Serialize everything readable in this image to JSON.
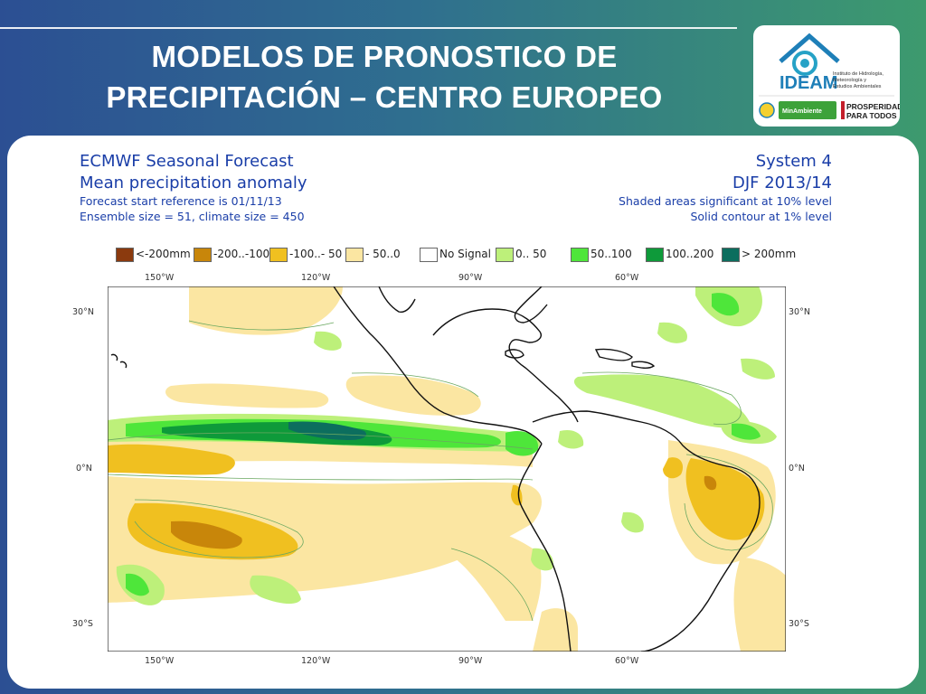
{
  "slide": {
    "title_line1": "MODELOS DE PRONOSTICO DE",
    "title_line2": "PRECIPITACIÓN – CENTRO EUROPEO"
  },
  "logo": {
    "name": "IDEAM",
    "subtitle_line1": "Instituto de Hidrología,",
    "subtitle_line2": "Meteorología y",
    "subtitle_line3": "Estudios Ambientales",
    "ministry": "MinAmbiente",
    "slogan_line1": "PROSPERIDAD",
    "slogan_line2": "PARA TODOS"
  },
  "forecast": {
    "title": "ECMWF Seasonal Forecast",
    "subtitle": "Mean precipitation anomaly",
    "start_ref": "Forecast start reference is 01/11/13",
    "ensemble": "Ensemble size = 51, climate size = 450",
    "system": "System 4",
    "period": "DJF 2013/14",
    "note1": "Shaded areas significant at 10% level",
    "note2": "Solid contour at 1% level"
  },
  "legend": [
    {
      "label": "<-200mm",
      "color": "#8b3a0e"
    },
    {
      "label": "-200..-100",
      "color": "#c8860a"
    },
    {
      "label": "-100..- 50",
      "color": "#f0c020"
    },
    {
      "label": "- 50..0",
      "color": "#fbe6a2"
    },
    {
      "label": "No Signal",
      "color": "#ffffff"
    },
    {
      "label": "0.. 50",
      "color": "#bdf07a"
    },
    {
      "label": "50..100",
      "color": "#4ee63a"
    },
    {
      "label": "100..200",
      "color": "#0e9a3a"
    },
    {
      "label": "> 200mm",
      "color": "#0c6e5e"
    }
  ],
  "axes": {
    "lon_labels": [
      "150°W",
      "120°W",
      "90°W",
      "60°W"
    ],
    "lat_labels": [
      "30°N",
      "0°N",
      "30°S"
    ]
  }
}
